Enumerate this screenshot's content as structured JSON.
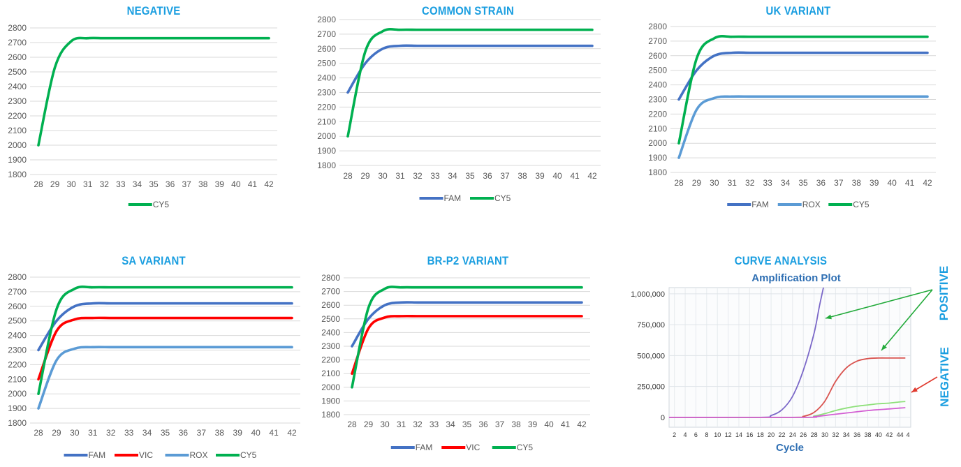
{
  "colors": {
    "title": "#1a9ee0",
    "FAM": "#4472c4",
    "VIC": "#ff0000",
    "ROX": "#5b9bd5",
    "CY5": "#00b050",
    "grid": "#d9d9d9",
    "axis": "#595959"
  },
  "chart_data": [
    {
      "type": "line",
      "title": "NEGATIVE",
      "x": [
        28,
        29,
        30,
        31,
        32,
        33,
        34,
        35,
        36,
        37,
        38,
        39,
        40,
        41,
        42
      ],
      "ylim": [
        1800,
        2800
      ],
      "yticks": [
        1800,
        1900,
        2000,
        2100,
        2200,
        2300,
        2400,
        2500,
        2600,
        2700,
        2800
      ],
      "series": [
        {
          "name": "CY5",
          "color": "#00b050",
          "values": [
            2000,
            2530,
            2710,
            2730,
            2730,
            2730,
            2730,
            2730,
            2730,
            2730,
            2730,
            2730,
            2730,
            2730,
            2730
          ]
        }
      ],
      "legend": "bottom"
    },
    {
      "type": "line",
      "title": "COMMON STRAIN",
      "x": [
        28,
        29,
        30,
        31,
        32,
        33,
        34,
        35,
        36,
        37,
        38,
        39,
        40,
        41,
        42
      ],
      "ylim": [
        1800,
        2800
      ],
      "yticks": [
        1800,
        1900,
        2000,
        2100,
        2200,
        2300,
        2400,
        2500,
        2600,
        2700,
        2800
      ],
      "series": [
        {
          "name": "FAM",
          "color": "#4472c4",
          "values": [
            2300,
            2500,
            2600,
            2620,
            2620,
            2620,
            2620,
            2620,
            2620,
            2620,
            2620,
            2620,
            2620,
            2620,
            2620
          ]
        },
        {
          "name": "CY5",
          "color": "#00b050",
          "values": [
            2000,
            2580,
            2720,
            2730,
            2730,
            2730,
            2730,
            2730,
            2730,
            2730,
            2730,
            2730,
            2730,
            2730,
            2730
          ]
        }
      ],
      "legend": "bottom"
    },
    {
      "type": "line",
      "title": "UK VARIANT",
      "x": [
        28,
        29,
        30,
        31,
        32,
        33,
        34,
        35,
        36,
        37,
        38,
        39,
        40,
        41,
        42
      ],
      "ylim": [
        1800,
        2800
      ],
      "yticks": [
        1800,
        1900,
        2000,
        2100,
        2200,
        2300,
        2400,
        2500,
        2600,
        2700,
        2800
      ],
      "series": [
        {
          "name": "FAM",
          "color": "#4472c4",
          "values": [
            2300,
            2500,
            2600,
            2620,
            2620,
            2620,
            2620,
            2620,
            2620,
            2620,
            2620,
            2620,
            2620,
            2620,
            2620
          ]
        },
        {
          "name": "ROX",
          "color": "#5b9bd5",
          "values": [
            1900,
            2230,
            2310,
            2320,
            2320,
            2320,
            2320,
            2320,
            2320,
            2320,
            2320,
            2320,
            2320,
            2320,
            2320
          ]
        },
        {
          "name": "CY5",
          "color": "#00b050",
          "values": [
            2000,
            2580,
            2720,
            2730,
            2730,
            2730,
            2730,
            2730,
            2730,
            2730,
            2730,
            2730,
            2730,
            2730,
            2730
          ]
        }
      ],
      "legend": "bottom"
    },
    {
      "type": "line",
      "title": "SA VARIANT",
      "x": [
        28,
        29,
        30,
        31,
        32,
        33,
        34,
        35,
        36,
        37,
        38,
        39,
        40,
        41,
        42
      ],
      "ylim": [
        1800,
        2800
      ],
      "yticks": [
        1800,
        1900,
        2000,
        2100,
        2200,
        2300,
        2400,
        2500,
        2600,
        2700,
        2800
      ],
      "series": [
        {
          "name": "FAM",
          "color": "#4472c4",
          "values": [
            2300,
            2500,
            2600,
            2620,
            2620,
            2620,
            2620,
            2620,
            2620,
            2620,
            2620,
            2620,
            2620,
            2620,
            2620
          ]
        },
        {
          "name": "VIC",
          "color": "#ff0000",
          "values": [
            2100,
            2430,
            2510,
            2520,
            2520,
            2520,
            2520,
            2520,
            2520,
            2520,
            2520,
            2520,
            2520,
            2520,
            2520
          ]
        },
        {
          "name": "ROX",
          "color": "#5b9bd5",
          "values": [
            1900,
            2230,
            2310,
            2320,
            2320,
            2320,
            2320,
            2320,
            2320,
            2320,
            2320,
            2320,
            2320,
            2320,
            2320
          ]
        },
        {
          "name": "CY5",
          "color": "#00b050",
          "values": [
            2000,
            2580,
            2720,
            2730,
            2730,
            2730,
            2730,
            2730,
            2730,
            2730,
            2730,
            2730,
            2730,
            2730,
            2730
          ]
        }
      ],
      "legend": "bottom"
    },
    {
      "type": "line",
      "title": "BR-P2 VARIANT",
      "x": [
        28,
        29,
        30,
        31,
        32,
        33,
        34,
        35,
        36,
        37,
        38,
        39,
        40,
        41,
        42
      ],
      "ylim": [
        1800,
        2800
      ],
      "yticks": [
        1800,
        1900,
        2000,
        2100,
        2200,
        2300,
        2400,
        2500,
        2600,
        2700,
        2800
      ],
      "series": [
        {
          "name": "FAM",
          "color": "#4472c4",
          "values": [
            2300,
            2500,
            2600,
            2620,
            2620,
            2620,
            2620,
            2620,
            2620,
            2620,
            2620,
            2620,
            2620,
            2620,
            2620
          ]
        },
        {
          "name": "VIC",
          "color": "#ff0000",
          "values": [
            2100,
            2430,
            2510,
            2520,
            2520,
            2520,
            2520,
            2520,
            2520,
            2520,
            2520,
            2520,
            2520,
            2520,
            2520
          ]
        },
        {
          "name": "CY5",
          "color": "#00b050",
          "values": [
            2000,
            2580,
            2720,
            2730,
            2730,
            2730,
            2730,
            2730,
            2730,
            2730,
            2730,
            2730,
            2730,
            2730,
            2730
          ]
        }
      ],
      "legend": "bottom"
    },
    {
      "type": "line",
      "title": "CURVE ANALYSIS",
      "subtitle": "Amplification Plot",
      "xlabel": "Cycle",
      "xticks": [
        2,
        4,
        6,
        8,
        10,
        12,
        14,
        16,
        18,
        20,
        22,
        24,
        26,
        28,
        30,
        32,
        34,
        36,
        38,
        40,
        42,
        44,
        "4"
      ],
      "xlim": [
        1,
        46
      ],
      "ylim": [
        -80000,
        1050000
      ],
      "yticks": [
        0,
        250000,
        500000,
        750000,
        1000000
      ],
      "ytick_labels": [
        "0",
        "250,000",
        "500,000",
        "750,000",
        "1,000,000"
      ],
      "series": [
        {
          "color": "#7b68c8",
          "x": [
            1,
            18,
            20,
            22,
            24,
            26,
            28,
            29,
            30
          ],
          "values": [
            0,
            0,
            15000,
            60000,
            170000,
            380000,
            680000,
            900000,
            1100000
          ]
        },
        {
          "color": "#d9534f",
          "x": [
            1,
            24,
            26,
            28,
            30,
            32,
            34,
            36,
            38,
            40,
            42,
            44,
            45
          ],
          "values": [
            0,
            0,
            8000,
            40000,
            130000,
            290000,
            400000,
            455000,
            475000,
            480000,
            480000,
            480000,
            480000
          ]
        },
        {
          "color": "#8ee07a",
          "x": [
            1,
            26,
            28,
            30,
            32,
            34,
            36,
            38,
            40,
            42,
            44,
            45
          ],
          "values": [
            0,
            0,
            10000,
            30000,
            55000,
            75000,
            90000,
            100000,
            110000,
            115000,
            125000,
            128000
          ]
        },
        {
          "color": "#d35fd3",
          "x": [
            1,
            26,
            28,
            30,
            32,
            34,
            36,
            38,
            40,
            42,
            44,
            45
          ],
          "values": [
            0,
            0,
            5000,
            15000,
            25000,
            35000,
            45000,
            55000,
            62000,
            68000,
            75000,
            78000
          ]
        }
      ],
      "annotations": [
        "POSITIVE",
        "NEGATIVE"
      ]
    }
  ]
}
